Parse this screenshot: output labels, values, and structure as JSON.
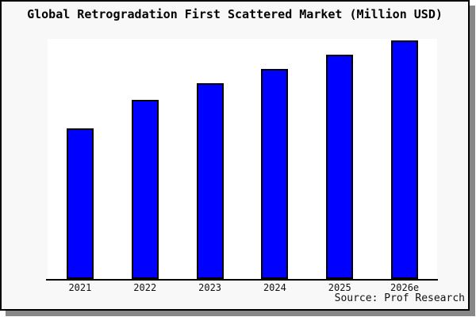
{
  "frame": {
    "background": "#f8f8f8",
    "plot_background": "#ffffff",
    "border_color": "#000000",
    "shadow_color": "#888888"
  },
  "chart_data": {
    "type": "bar",
    "title": "Global Retrogradation First Scattered Market (Million USD)",
    "categories": [
      "2021",
      "2022",
      "2023",
      "2024",
      "2025",
      "2026e"
    ],
    "values": [
      63,
      75,
      82,
      88,
      94,
      100
    ],
    "value_units": "relative (no y-axis scale shown in chart)",
    "xlabel": "",
    "ylabel": "",
    "ylim": [
      0,
      100
    ],
    "y_axis_visible": false,
    "grid": false,
    "legend": false,
    "bar_color": "#0000ff",
    "bar_border_color": "#000000"
  },
  "footer": {
    "source": "Source: Prof Research"
  }
}
